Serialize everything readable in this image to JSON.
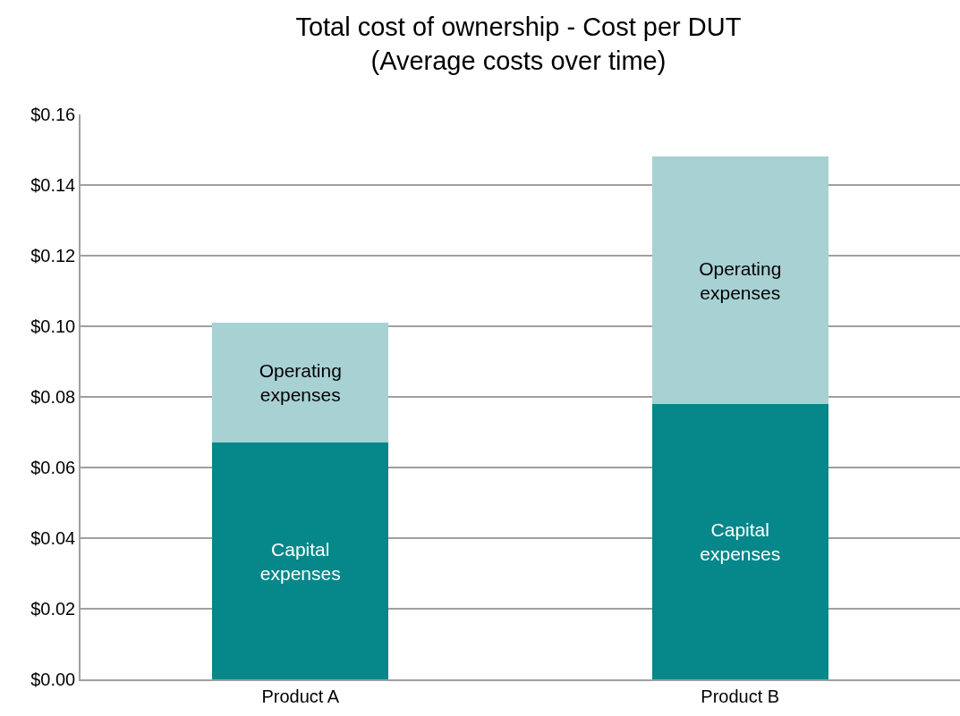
{
  "chart_data": {
    "type": "bar",
    "stacked": true,
    "title": "Total cost of ownership - Cost per DUT",
    "subtitle": "(Average costs over time)",
    "categories": [
      "Product A",
      "Product B"
    ],
    "series": [
      {
        "name": "Capital expenses",
        "color": "#06878a",
        "values": [
          0.067,
          0.078
        ]
      },
      {
        "name": "Operating expenses",
        "color": "#a8d1d4",
        "values": [
          0.034,
          0.07
        ]
      }
    ],
    "ylim": [
      0,
      0.16
    ],
    "yticks": [
      {
        "value": 0,
        "label": "$0.00"
      },
      {
        "value": 0.02,
        "label": "$0.02"
      },
      {
        "value": 0.04,
        "label": "$0.04"
      },
      {
        "value": 0.06,
        "label": "$0.06"
      },
      {
        "value": 0.08,
        "label": "$0.08"
      },
      {
        "value": 0.1,
        "label": "$0.10"
      },
      {
        "value": 0.12,
        "label": "$0.12"
      },
      {
        "value": 0.14,
        "label": "$0.14"
      },
      {
        "value": 0.16,
        "label": "$0.16"
      }
    ],
    "grid": "y",
    "legend": false
  }
}
